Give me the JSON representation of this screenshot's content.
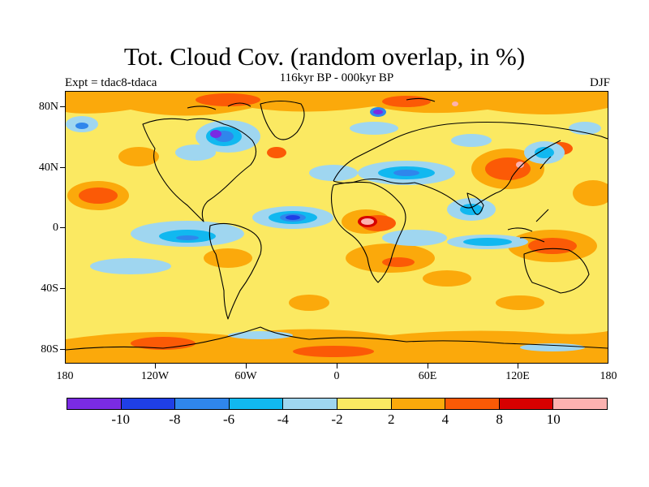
{
  "header": {
    "title": "Tot. Cloud Cov. (random overlap, in %)",
    "subtitle": "116kyr BP - 000kyr BP",
    "experiment": "Expt = tdac8-tdaca",
    "season": "DJF"
  },
  "map": {
    "lat_labels": [
      "80N",
      "40N",
      "0",
      "40S",
      "80S"
    ],
    "lon_labels": [
      "180",
      "120W",
      "60W",
      "0",
      "60E",
      "120E",
      "180"
    ],
    "background_level_color": "#fbe962"
  },
  "colorbar": {
    "colors": [
      "#7a2be3",
      "#1f3fe6",
      "#2f86ec",
      "#11b8f0",
      "#9fd6f0",
      "#fbe962",
      "#fba90b",
      "#fb5a06",
      "#d70000",
      "#fcb2b0"
    ],
    "labels": [
      "-10",
      "-8",
      "-6",
      "-4",
      "-2",
      "2",
      "4",
      "8",
      "10"
    ]
  }
}
